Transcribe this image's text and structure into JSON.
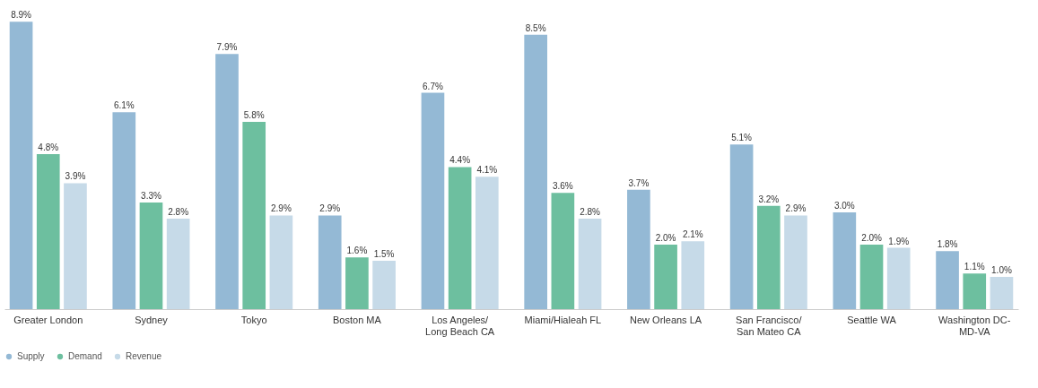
{
  "chart_data": {
    "type": "bar",
    "categories": [
      "Greater London",
      "Sydney",
      "Tokyo",
      "Boston MA",
      "Los Angeles/\nLong Beach CA",
      "Miami/Hialeah FL",
      "New Orleans LA",
      "San Francisco/\nSan Mateo CA",
      "Seattle WA",
      "Washington DC-\nMD-VA"
    ],
    "series": [
      {
        "name": "Supply",
        "color": "#94b9d5",
        "values": [
          8.9,
          6.1,
          7.9,
          2.9,
          6.7,
          8.5,
          3.7,
          5.1,
          3.0,
          1.8
        ],
        "value_labels": [
          "8.9%",
          "6.1%",
          "7.9%",
          "2.9%",
          "6.7%",
          "8.5%",
          "3.7%",
          "5.1%",
          "3.0%",
          "1.8%"
        ]
      },
      {
        "name": "Demand",
        "color": "#6dbf9f",
        "values": [
          4.8,
          3.3,
          5.8,
          1.6,
          4.4,
          3.6,
          2.0,
          3.2,
          2.0,
          1.1
        ],
        "value_labels": [
          "4.8%",
          "3.3%",
          "5.8%",
          "1.6%",
          "4.4%",
          "3.6%",
          "2.0%",
          "3.2%",
          "2.0%",
          "1.1%"
        ]
      },
      {
        "name": "Revenue",
        "color": "#c6dae8",
        "values": [
          3.9,
          2.8,
          2.9,
          1.5,
          4.1,
          2.8,
          2.1,
          2.9,
          1.9,
          1.0
        ],
        "value_labels": [
          "3.9%",
          "2.8%",
          "2.9%",
          "1.5%",
          "4.1%",
          "2.8%",
          "2.1%",
          "2.9%",
          "1.9%",
          "1.0%"
        ]
      }
    ],
    "legend": "bottom left",
    "grid": false
  }
}
